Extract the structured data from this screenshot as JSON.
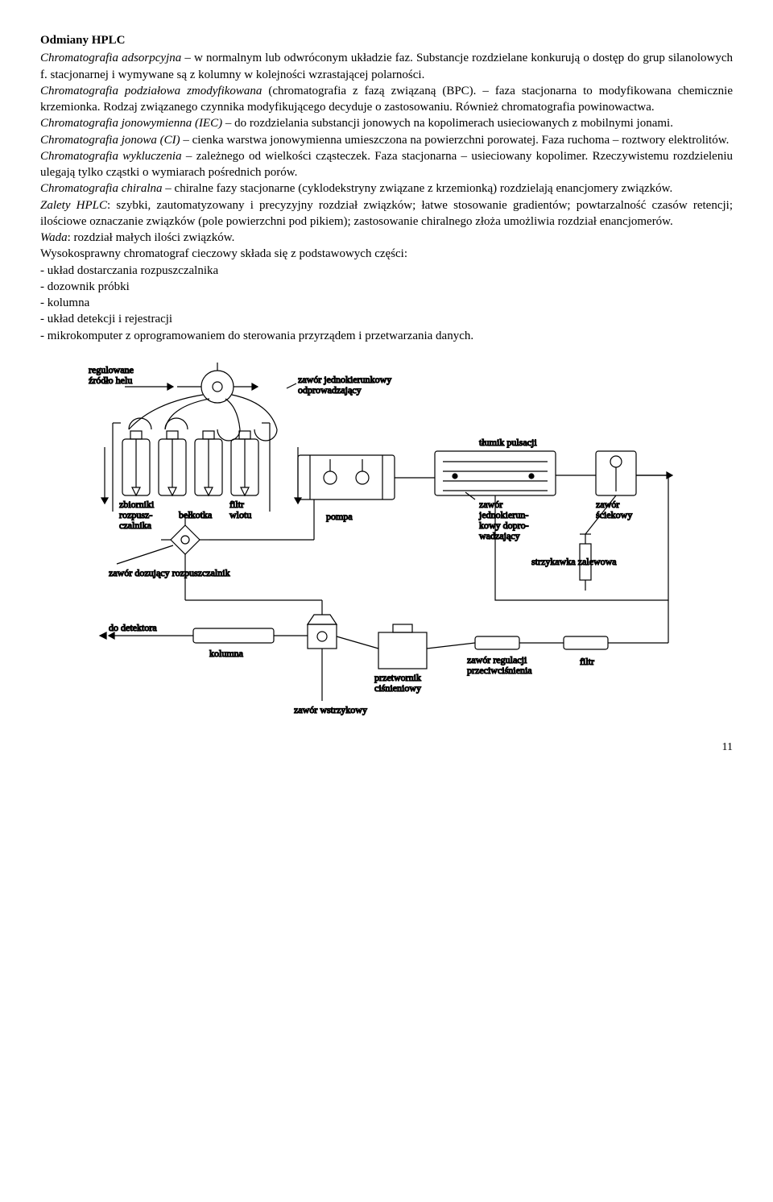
{
  "heading": "Odmiany HPLC",
  "p_adsorpcyjna_1": "Chromatografia adsorpcyjna",
  "p_adsorpcyjna_2": " – w normalnym lub odwróconym układzie faz. Substancje rozdzielane konkurują o dostęp do grup silanolowych f. stacjonarnej i wymywane są z kolumny w kolejności wzrastającej polarności.",
  "p_podzialowa_1": "Chromatografia podziałowa zmodyfikowana",
  "p_podzialowa_2": " (chromatografia z fazą związaną (BPC). – faza stacjonarna to modyfikowana chemicznie krzemionka. Rodzaj związanego czynnika modyfikującego decyduje o zastosowaniu. Również chromatografia powinowactwa.",
  "p_iec_1": "Chromatografia jonowymienna (IEC)",
  "p_iec_2": " – do rozdzielania substancji jonowych na kopolimerach usieciowanych z mobilnymi jonami.",
  "p_ci_1": "Chromatografia jonowa (CI)",
  "p_ci_2": " – cienka warstwa jonowymienna umieszczona na powierzchni porowatej. Faza ruchoma – roztwory elektrolitów.",
  "p_wykl_1": "Chromatografia wykluczenia",
  "p_wykl_2": " – zależnego od wielkości cząsteczek. Faza stacjonarna – usieciowany kopolimer. Rzeczywistemu rozdzieleniu ulegają tylko cząstki o wymiarach pośrednich porów.",
  "p_chir_1": "Chromatografia chiralna",
  "p_chir_2": " – chiralne fazy stacjonarne (cyklodekstryny związane z krzemionką) rozdzielają enancjomery związków.",
  "p_zalety_1": "Zalety HPLC",
  "p_zalety_2": ": szybki, zautomatyzowany i precyzyjny rozdział związków; łatwe stosowanie gradientów; powtarzalność czasów retencji; ilościowe oznaczanie związków (pole powierzchni pod pikiem); zastosowanie chiralnego złoża umożliwia rozdział enancjomerów.",
  "p_wada_1": "Wada",
  "p_wada_2": ": rozdział małych ilości związków.",
  "p_sklad": "Wysokosprawny chromatograf cieczowy składa się z podstawowych części:",
  "li1": "- układ dostarczania rozpuszczalnika",
  "li2": "- dozownik próbki",
  "li3": "- kolumna",
  "li4": "- układ detekcji i rejestracji",
  "li5": "- mikrokomputer z oprogramowaniem do sterowania przyrządem i przetwarzania danych.",
  "page_num": "11",
  "diagram": {
    "labels": {
      "hel": "regulowane\nźródło helu",
      "zawor_odpr": "zawór jednokierunkowy\nodprowadzający",
      "zbiorniki": "zbiorniki\nrozpusz-\nczalnika",
      "belkotka": "bełkotka",
      "filtr_wlotu": "filtr\nwlotu",
      "pompa": "pompa",
      "tlumik": "tłumik pulsacji",
      "zawor_dopr": "zawór\njednokierun-\nkowy dopro-\nwadzający",
      "zawor_sciek": "zawór\nściekowy",
      "strzykawka": "strzykawka zalewowa",
      "zawor_doz": "zawór dozujący rozpuszczalnik",
      "do_detektora": "do detektora",
      "kolumna": "kolumna",
      "przetwornik": "przetwornik\nciśnieniowy",
      "zawor_reg": "zawór regulacji\nprzeciwciśnienia",
      "filtr": "filtr",
      "zawor_wst": "zawór wstrzykowy"
    },
    "stroke": "#000000",
    "bg": "#ffffff"
  }
}
